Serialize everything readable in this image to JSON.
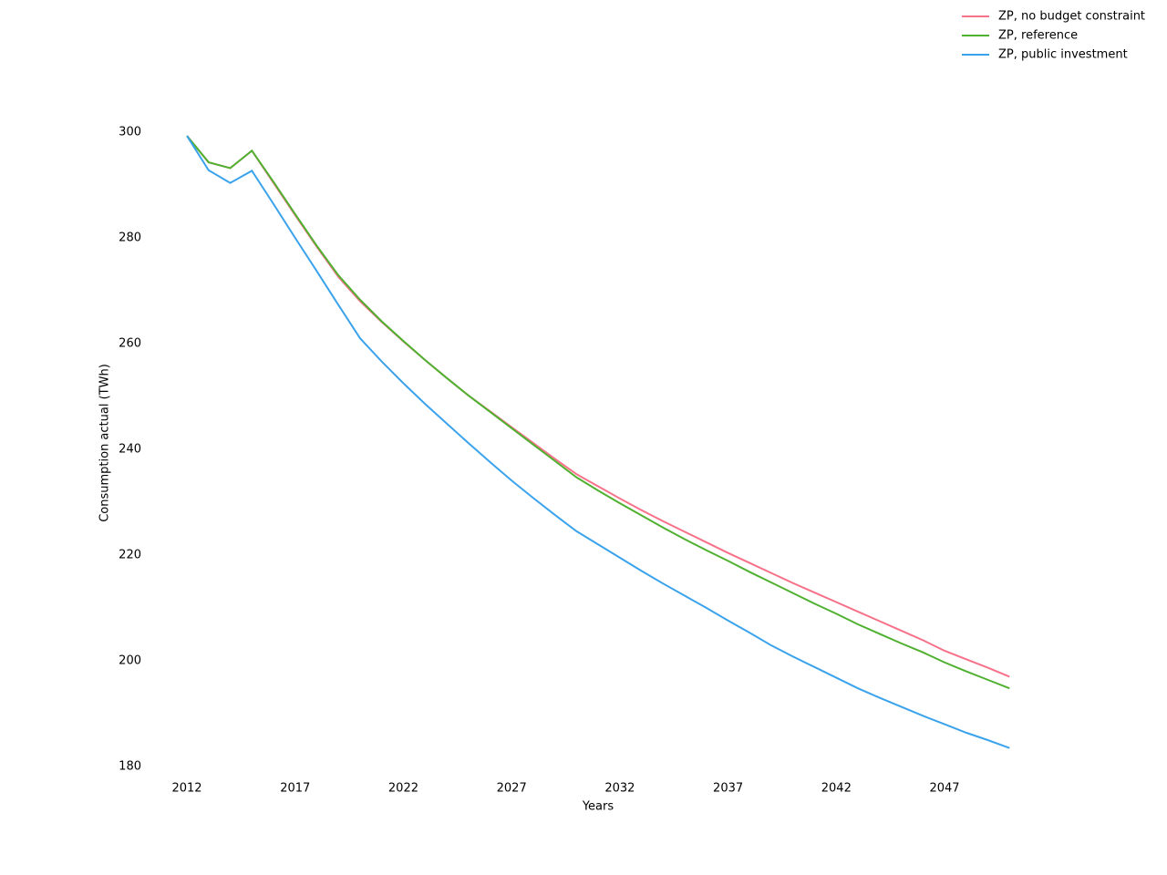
{
  "chart_data": {
    "type": "line",
    "x_label": "Years",
    "y_label": "Consumption actual (TWh)",
    "x": [
      2012,
      2013,
      2014,
      2015,
      2016,
      2017,
      2018,
      2019,
      2020,
      2021,
      2022,
      2023,
      2024,
      2025,
      2026,
      2027,
      2028,
      2029,
      2030,
      2031,
      2032,
      2033,
      2034,
      2035,
      2036,
      2037,
      2038,
      2039,
      2040,
      2041,
      2042,
      2043,
      2044,
      2045,
      2046,
      2047,
      2048,
      2049,
      2050
    ],
    "series": [
      {
        "name": "ZP, no budget constraint",
        "color": "#f77189",
        "values": [
          299.3,
          294.3,
          293.2,
          296.5,
          290.4,
          284.3,
          278.3,
          272.6,
          268.0,
          264.1,
          260.4,
          256.9,
          253.5,
          250.2,
          247.2,
          244.2,
          241.2,
          238.2,
          235.3,
          233.0,
          230.7,
          228.5,
          226.4,
          224.4,
          222.4,
          220.4,
          218.5,
          216.6,
          214.7,
          212.9,
          211.1,
          209.3,
          207.5,
          205.7,
          203.9,
          201.9,
          200.3,
          198.7,
          197.0
        ]
      },
      {
        "name": "ZP, reference",
        "color": "#50b131",
        "values": [
          299.3,
          294.3,
          293.2,
          296.5,
          290.6,
          284.5,
          278.5,
          272.9,
          268.3,
          264.2,
          260.5,
          256.9,
          253.5,
          250.2,
          247.1,
          244.0,
          240.9,
          237.8,
          234.7,
          232.2,
          229.8,
          227.5,
          225.2,
          223.0,
          220.9,
          218.9,
          216.8,
          214.8,
          212.8,
          210.8,
          208.9,
          206.9,
          205.1,
          203.3,
          201.6,
          199.7,
          198.0,
          196.4,
          194.8
        ]
      },
      {
        "name": "ZP, public investment",
        "color": "#3ba3ec",
        "values": [
          299.3,
          292.8,
          290.4,
          292.7,
          286.4,
          280.0,
          273.7,
          267.3,
          261.0,
          256.6,
          252.5,
          248.6,
          244.9,
          241.2,
          237.6,
          234.1,
          230.8,
          227.6,
          224.5,
          222.0,
          219.5,
          217.0,
          214.6,
          212.3,
          210.0,
          207.6,
          205.3,
          202.9,
          200.8,
          198.8,
          196.8,
          194.8,
          193.0,
          191.3,
          189.6,
          188.0,
          186.4,
          185.0,
          183.5
        ]
      }
    ],
    "xlim": [
      2011,
      2051
    ],
    "xticks": [
      2012,
      2017,
      2022,
      2027,
      2032,
      2037,
      2042,
      2047
    ],
    "ylim": [
      178,
      302
    ],
    "yticks": [
      180,
      200,
      220,
      240,
      260,
      280,
      300
    ],
    "legend": "upper-right"
  }
}
